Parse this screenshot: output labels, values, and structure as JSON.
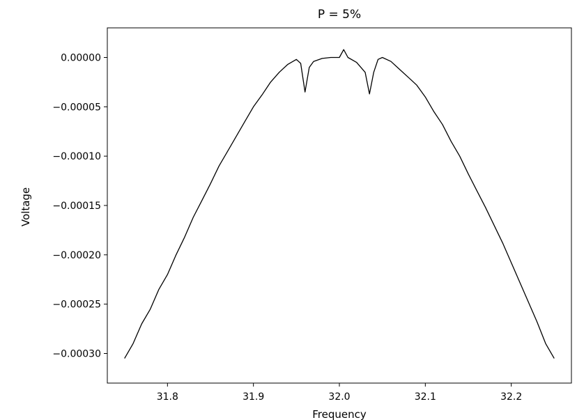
{
  "chart_data": {
    "type": "line",
    "title": "P = 5%",
    "xlabel": "Frequency",
    "ylabel": "Voltage",
    "xlim": [
      31.73,
      32.27
    ],
    "ylim": [
      -0.00033,
      3e-05
    ],
    "x_ticks": [
      31.8,
      31.9,
      32.0,
      32.1,
      32.2
    ],
    "x_tick_labels": [
      "31.8",
      "31.9",
      "32.0",
      "32.1",
      "32.2"
    ],
    "y_ticks": [
      0.0,
      -5e-05,
      -0.0001,
      -0.00015,
      -0.0002,
      -0.00025,
      -0.0003
    ],
    "y_tick_labels": [
      "0.00000",
      "−0.00005",
      "−0.00010",
      "−0.00015",
      "−0.00020",
      "−0.00025",
      "−0.00030"
    ],
    "grid": false,
    "line_color": "#000000",
    "series": [
      {
        "x": [
          31.75,
          31.76,
          31.77,
          31.78,
          31.79,
          31.8,
          31.81,
          31.82,
          31.83,
          31.84,
          31.85,
          31.86,
          31.87,
          31.88,
          31.89,
          31.9,
          31.91,
          31.92,
          31.93,
          31.94,
          31.95,
          31.955,
          31.96,
          31.965,
          31.97,
          31.98,
          31.99,
          32.0,
          32.005,
          32.01,
          32.02,
          32.03,
          32.035,
          32.04,
          32.045,
          32.05,
          32.06,
          32.07,
          32.08,
          32.09,
          32.1,
          32.11,
          32.12,
          32.13,
          32.14,
          32.15,
          32.16,
          32.17,
          32.18,
          32.19,
          32.2,
          32.21,
          32.22,
          32.23,
          32.24,
          32.25
        ],
        "y": [
          -0.000305,
          -0.00029,
          -0.00027,
          -0.000255,
          -0.000235,
          -0.00022,
          -0.0002,
          -0.000182,
          -0.000162,
          -0.000145,
          -0.000128,
          -0.00011,
          -9.5e-05,
          -8e-05,
          -6.5e-05,
          -5e-05,
          -3.8e-05,
          -2.5e-05,
          -1.5e-05,
          -7e-06,
          -2e-06,
          -6e-06,
          -3.5e-05,
          -1e-05,
          -4e-06,
          -1e-06,
          0.0,
          0.0,
          8e-06,
          0.0,
          -5e-06,
          -1.5e-05,
          -3.7e-05,
          -1.5e-05,
          -2e-06,
          0.0,
          -4e-06,
          -1.2e-05,
          -2e-05,
          -2.8e-05,
          -4e-05,
          -5.5e-05,
          -6.8e-05,
          -8.5e-05,
          -0.0001,
          -0.000118,
          -0.000135,
          -0.000152,
          -0.00017,
          -0.000188,
          -0.000208,
          -0.000228,
          -0.000248,
          -0.000268,
          -0.00029,
          -0.000305
        ]
      }
    ]
  }
}
